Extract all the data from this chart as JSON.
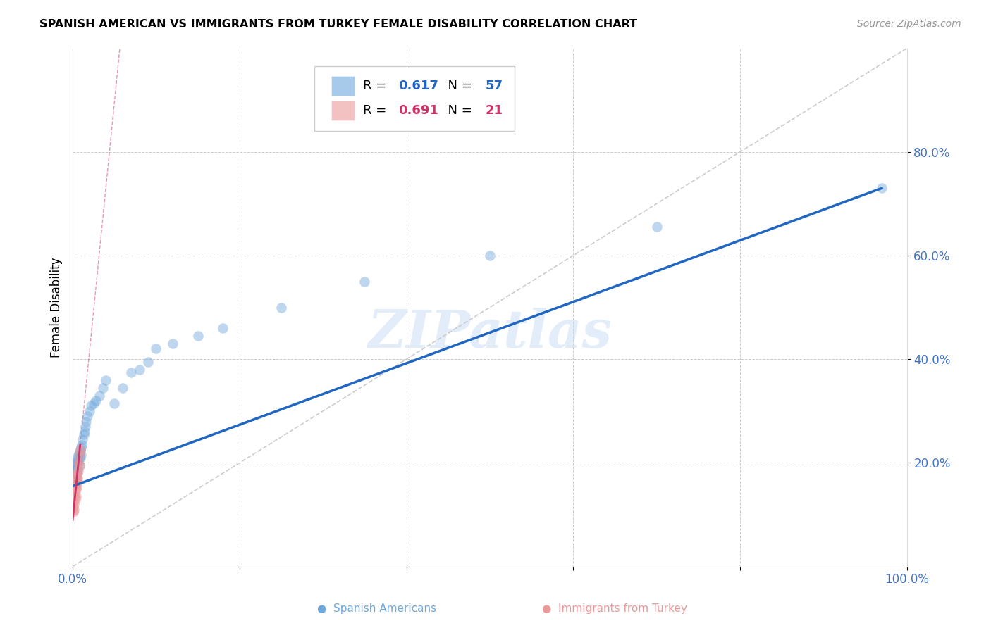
{
  "title": "SPANISH AMERICAN VS IMMIGRANTS FROM TURKEY FEMALE DISABILITY CORRELATION CHART",
  "source": "Source: ZipAtlas.com",
  "ylabel": "Female Disability",
  "xlim": [
    0,
    1.0
  ],
  "ylim": [
    0,
    1.0
  ],
  "xtick_vals": [
    0.0,
    0.2,
    0.4,
    0.6,
    0.8,
    1.0
  ],
  "xtick_labels": [
    "0.0%",
    "",
    "",
    "",
    "",
    "100.0%"
  ],
  "ytick_vals": [
    0.2,
    0.4,
    0.6,
    0.8
  ],
  "ytick_labels": [
    "20.0%",
    "40.0%",
    "60.0%",
    "80.0%"
  ],
  "legend_r1": "0.617",
  "legend_n1": "57",
  "legend_r2": "0.691",
  "legend_n2": "21",
  "blue_color": "#6fa8dc",
  "pink_color": "#ea9999",
  "line_blue": "#2166c0",
  "line_pink": "#cc3366",
  "diagonal_color": "#cccccc",
  "watermark": "ZIPatlas",
  "blue_scatter_x": [
    0.001,
    0.001,
    0.001,
    0.002,
    0.002,
    0.002,
    0.003,
    0.003,
    0.003,
    0.003,
    0.004,
    0.004,
    0.004,
    0.005,
    0.005,
    0.005,
    0.005,
    0.006,
    0.006,
    0.006,
    0.007,
    0.007,
    0.008,
    0.008,
    0.008,
    0.009,
    0.009,
    0.01,
    0.01,
    0.011,
    0.012,
    0.013,
    0.014,
    0.015,
    0.016,
    0.018,
    0.02,
    0.022,
    0.025,
    0.028,
    0.032,
    0.036,
    0.04,
    0.05,
    0.06,
    0.07,
    0.08,
    0.09,
    0.1,
    0.12,
    0.15,
    0.18,
    0.25,
    0.35,
    0.5,
    0.7,
    0.97
  ],
  "blue_scatter_y": [
    0.185,
    0.175,
    0.165,
    0.195,
    0.18,
    0.17,
    0.19,
    0.185,
    0.175,
    0.165,
    0.2,
    0.19,
    0.175,
    0.205,
    0.195,
    0.185,
    0.165,
    0.21,
    0.2,
    0.185,
    0.215,
    0.2,
    0.22,
    0.21,
    0.195,
    0.225,
    0.21,
    0.23,
    0.215,
    0.235,
    0.245,
    0.255,
    0.26,
    0.27,
    0.28,
    0.29,
    0.3,
    0.31,
    0.315,
    0.32,
    0.33,
    0.345,
    0.36,
    0.315,
    0.345,
    0.375,
    0.38,
    0.395,
    0.42,
    0.43,
    0.445,
    0.46,
    0.5,
    0.55,
    0.6,
    0.655,
    0.73
  ],
  "pink_scatter_x": [
    0.001,
    0.001,
    0.001,
    0.002,
    0.002,
    0.002,
    0.003,
    0.003,
    0.004,
    0.004,
    0.004,
    0.005,
    0.005,
    0.005,
    0.006,
    0.006,
    0.007,
    0.007,
    0.008,
    0.008,
    0.009
  ],
  "pink_scatter_y": [
    0.105,
    0.115,
    0.125,
    0.11,
    0.12,
    0.135,
    0.13,
    0.145,
    0.135,
    0.15,
    0.16,
    0.155,
    0.165,
    0.175,
    0.17,
    0.18,
    0.185,
    0.2,
    0.195,
    0.215,
    0.225
  ],
  "blue_line_x0": 0.0,
  "blue_line_y0": 0.155,
  "blue_line_x1": 0.97,
  "blue_line_y1": 0.73,
  "pink_line_x0": 0.0,
  "pink_line_y0": 0.09,
  "pink_line_x1": 0.009,
  "pink_line_y1": 0.235
}
